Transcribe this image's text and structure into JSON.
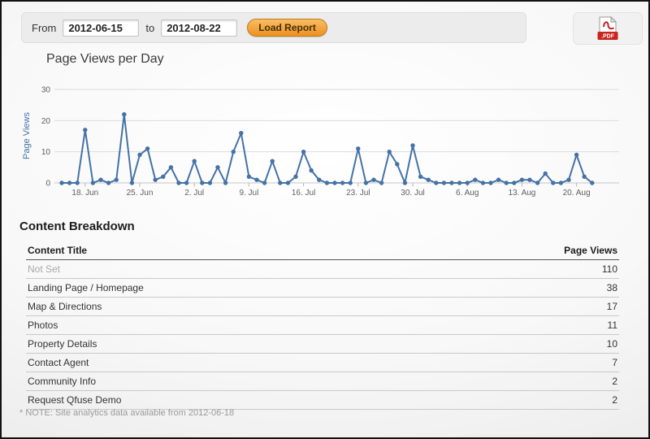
{
  "toolbar": {
    "from_label": "From",
    "from_value": "2012-06-15",
    "to_label": "to",
    "to_value": "2012-08-22",
    "load_button": "Load Report",
    "pdf_icon_label": ".PDF"
  },
  "chart_data": {
    "type": "line",
    "title": "Page Views per Day",
    "xlabel": "",
    "ylabel": "Page Views",
    "ylim": [
      0,
      30
    ],
    "yticks": [
      0,
      10,
      20,
      30
    ],
    "grid": "horizontal",
    "legend": "none",
    "line_color": "#4572a7",
    "x_start_date": "2012-06-15",
    "x_end_date": "2012-08-22",
    "xticks": [
      {
        "day_index": 3,
        "label": "18. Jun"
      },
      {
        "day_index": 10,
        "label": "25. Jun"
      },
      {
        "day_index": 17,
        "label": "2. Jul"
      },
      {
        "day_index": 24,
        "label": "9. Jul"
      },
      {
        "day_index": 31,
        "label": "16. Jul"
      },
      {
        "day_index": 38,
        "label": "23. Jul"
      },
      {
        "day_index": 45,
        "label": "30. Jul"
      },
      {
        "day_index": 52,
        "label": "6. Aug"
      },
      {
        "day_index": 59,
        "label": "13. Aug"
      },
      {
        "day_index": 66,
        "label": "20. Aug"
      }
    ],
    "values": [
      0,
      0,
      0,
      17,
      0,
      1,
      0,
      1,
      22,
      0,
      9,
      11,
      1,
      2,
      5,
      0,
      0,
      7,
      0,
      0,
      5,
      0,
      10,
      16,
      2,
      1,
      0,
      7,
      0,
      0,
      2,
      10,
      4,
      1,
      0,
      0,
      0,
      0,
      11,
      0,
      1,
      0,
      10,
      6,
      0,
      12,
      2,
      1,
      0,
      0,
      0,
      0,
      0,
      1,
      0,
      0,
      1,
      0,
      0,
      1,
      1,
      0,
      3,
      0,
      0,
      1,
      9,
      2,
      0
    ]
  },
  "content_breakdown": {
    "heading": "Content Breakdown",
    "columns": [
      "Content Title",
      "Page Views"
    ],
    "rows": [
      {
        "title": "Not Set",
        "views": 110,
        "muted": true
      },
      {
        "title": "Landing Page / Homepage",
        "views": 38
      },
      {
        "title": "Map & Directions",
        "views": 17
      },
      {
        "title": "Photos",
        "views": 11
      },
      {
        "title": "Property Details",
        "views": 10
      },
      {
        "title": "Contact Agent",
        "views": 7
      },
      {
        "title": "Community Info",
        "views": 2
      },
      {
        "title": "Request Qfuse Demo",
        "views": 2
      }
    ]
  },
  "footnote": "* NOTE: Site analytics data available from 2012-06-18"
}
